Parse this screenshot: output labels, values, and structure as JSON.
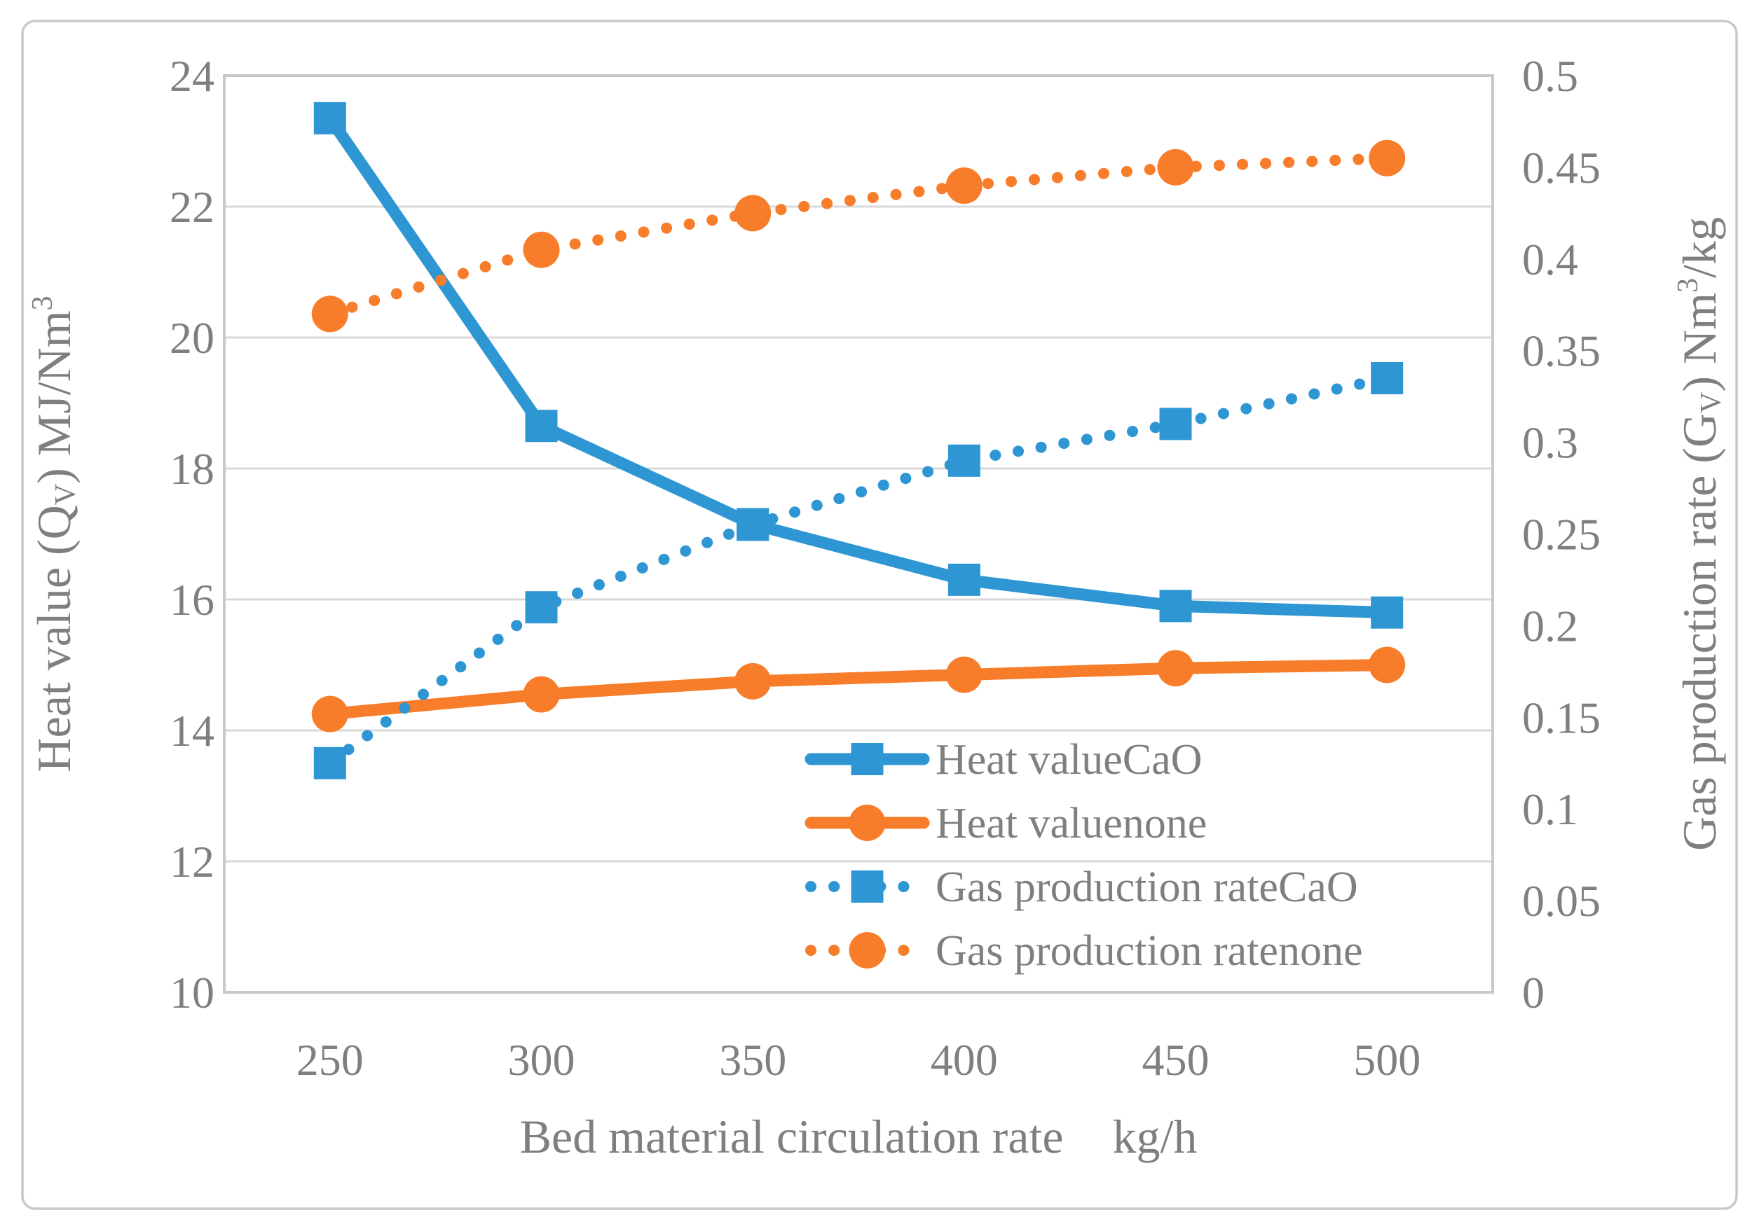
{
  "colors": {
    "blue": "#2d96d3",
    "orange": "#f87d2a",
    "grid": "#d9d9d9",
    "axis_line": "#c8c8c8",
    "figure_border": "#c9c9c9",
    "text": "#7f7f7f",
    "background": "#ffffff"
  },
  "chart_data": {
    "type": "line",
    "categories": [
      "250",
      "300",
      "350",
      "400",
      "450",
      "500"
    ],
    "x_axis": {
      "title": "Bed material circulation rate",
      "unit": "kg/h",
      "tick_labels": [
        "250",
        "300",
        "350",
        "400",
        "450",
        "500"
      ]
    },
    "left_axis": {
      "min": 10,
      "max": 24,
      "title_text": "Heat value (Qv) MJ/Nm3",
      "title_parts": [
        {
          "t": "Heat value (Q"
        },
        {
          "t": "V",
          "script": "sub"
        },
        {
          "t": ") MJ/Nm"
        },
        {
          "t": "3",
          "script": "sup"
        }
      ],
      "ticks": [
        {
          "label": "24",
          "value": 24
        },
        {
          "label": "22",
          "value": 22
        },
        {
          "label": "20",
          "value": 20
        },
        {
          "label": "18",
          "value": 18
        },
        {
          "label": "16",
          "value": 16
        },
        {
          "label": "14",
          "value": 14
        },
        {
          "label": "12",
          "value": 12
        },
        {
          "label": "10",
          "value": 10
        }
      ]
    },
    "right_axis": {
      "min": 0,
      "max": 0.5,
      "title_text": "Gas production rate (Gv) Nm3/kg",
      "title_parts": [
        {
          "t": "Gas production rate (G"
        },
        {
          "t": "V",
          "script": "sub"
        },
        {
          "t": ") Nm"
        },
        {
          "t": "3",
          "script": "sup"
        },
        {
          "t": "/kg"
        }
      ],
      "ticks": [
        {
          "label": "0.5",
          "value": 0.5
        },
        {
          "label": "0.45",
          "value": 0.45
        },
        {
          "label": "0.4",
          "value": 0.4
        },
        {
          "label": "0.35",
          "value": 0.35
        },
        {
          "label": "0.3",
          "value": 0.3
        },
        {
          "label": "0.25",
          "value": 0.25
        },
        {
          "label": "0.2",
          "value": 0.2
        },
        {
          "label": "0.15",
          "value": 0.15
        },
        {
          "label": "0.1",
          "value": 0.1
        },
        {
          "label": "0.05",
          "value": 0.05
        },
        {
          "label": "0",
          "value": 0
        }
      ]
    },
    "series": [
      {
        "name": "Heat valueCaO",
        "axis": "left",
        "color_key": "blue",
        "line": "solid",
        "marker": "square",
        "values": [
          23.35,
          18.65,
          17.15,
          16.3,
          15.9,
          15.8
        ]
      },
      {
        "name": "Heat valuenone",
        "axis": "left",
        "color_key": "orange",
        "line": "solid",
        "marker": "circle",
        "values": [
          14.25,
          14.55,
          14.75,
          14.85,
          14.95,
          15.0
        ]
      },
      {
        "name": "Gas production rateCaO",
        "axis": "right",
        "color_key": "blue",
        "line": "dotted",
        "marker": "square",
        "values": [
          0.125,
          0.21,
          0.255,
          0.29,
          0.31,
          0.335
        ]
      },
      {
        "name": "Gas production ratenone",
        "axis": "right",
        "color_key": "orange",
        "line": "dotted",
        "marker": "circle",
        "values": [
          0.37,
          0.405,
          0.425,
          0.44,
          0.45,
          0.455
        ]
      }
    ],
    "legend": {
      "position": "inside-bottom-right",
      "entries": [
        "Heat valueCaO",
        "Heat valuenone",
        "Gas production rateCaO",
        "Gas production ratenone"
      ]
    },
    "grid": "horizontal-only"
  }
}
